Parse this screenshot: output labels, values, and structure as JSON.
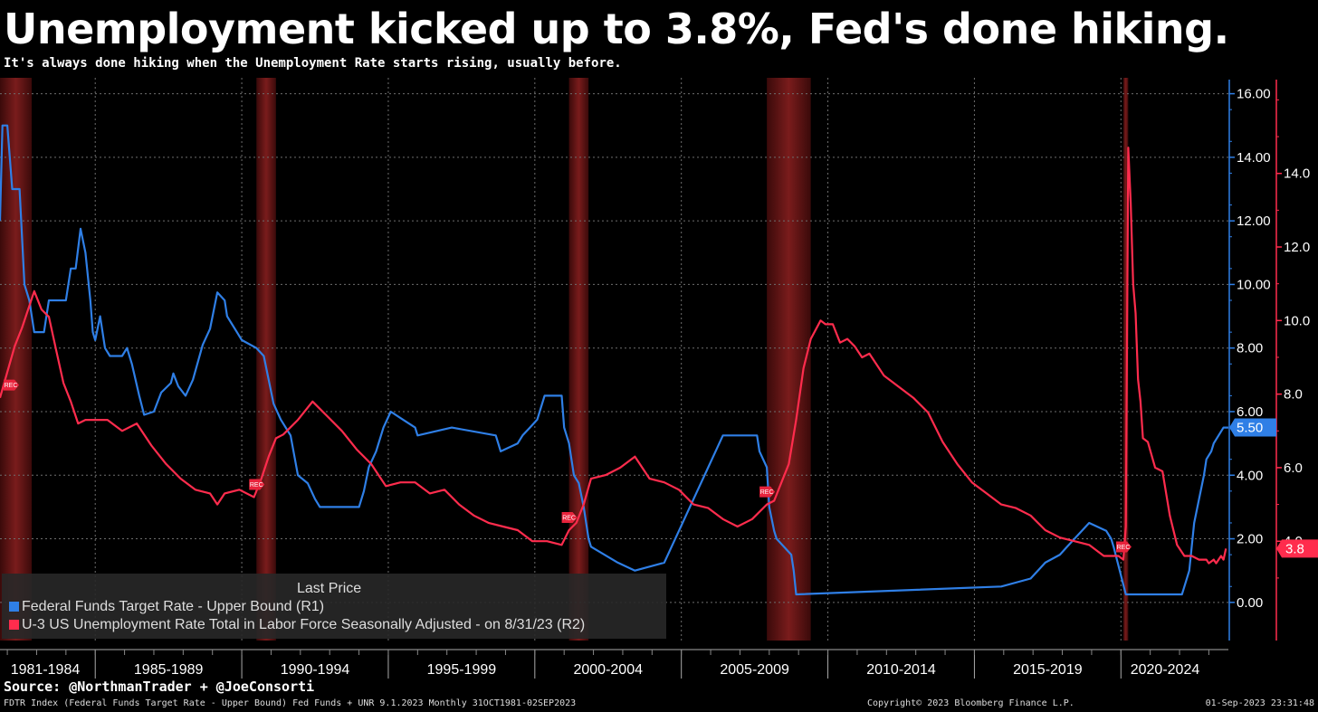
{
  "title": "Unemployment kicked up to 3.8%, Fed's done hiking.",
  "subtitle": "It's always done hiking when the Unemployment Rate starts rising, usually before.",
  "source": "Source: @NorthmanTrader + @JoeConsorti",
  "footer": {
    "left": "FDTR Index (Federal Funds Target Rate - Upper Bound) Fed Funds + UNR 9.1.2023  Monthly 31OCT1981-02SEP2023",
    "center": "Copyright© 2023 Bloomberg Finance L.P.",
    "right": "01-Sep-2023 23:31:48"
  },
  "legend": {
    "header": "Last Price",
    "items": [
      "Federal Funds Target Rate - Upper Bound  (R1)",
      "U-3 US Unemployment Rate Total in Labor Force Seasonally Adjusted -  on 8/31/23  (R2)"
    ]
  },
  "colors": {
    "fed": "#2f7fe6",
    "unemployment": "#ff2c4d",
    "recession": "#7a1c1c",
    "background": "#000000",
    "grid": "#6e6e6e"
  },
  "chart_data": {
    "type": "line",
    "x_range": [
      "1981-10",
      "2023-09"
    ],
    "x_tick_labels": [
      "1981-1984",
      "1985-1989",
      "1990-1994",
      "1995-1999",
      "2000-2004",
      "2005-2009",
      "2010-2014",
      "2015-2019",
      "2020-2024"
    ],
    "y1_axis": {
      "ticks": [
        "0.00",
        "2.00",
        "4.00",
        "6.00",
        "8.00",
        "10.00",
        "12.00",
        "14.00",
        "16.00"
      ],
      "ylim": [
        -1.2,
        16.5
      ]
    },
    "y2_axis": {
      "ticks": [
        "4.0",
        "6.0",
        "8.0",
        "10.0",
        "12.0",
        "14.0"
      ],
      "ylim": [
        1.3,
        16.6
      ]
    },
    "last_values": {
      "fed": "5.50",
      "unemployment": "3.8"
    },
    "recession_label": "REC",
    "recessions": [
      [
        "1981-07",
        "1982-11"
      ],
      [
        "1990-07",
        "1991-03"
      ],
      [
        "2001-03",
        "2001-11"
      ],
      [
        "2007-12",
        "2009-06"
      ],
      [
        "2020-02",
        "2020-04"
      ]
    ],
    "series": [
      {
        "name": "Federal Funds Target Rate - Upper Bound  (R1)",
        "axis": "y1",
        "points": [
          [
            "1981-10",
            12.0
          ],
          [
            "1981-11",
            15.0
          ],
          [
            "1982-01",
            15.0
          ],
          [
            "1982-03",
            13.0
          ],
          [
            "1982-06",
            13.0
          ],
          [
            "1982-08",
            10.0
          ],
          [
            "1982-10",
            9.5
          ],
          [
            "1982-11",
            9.0
          ],
          [
            "1982-12",
            8.5
          ],
          [
            "1983-04",
            8.5
          ],
          [
            "1983-06",
            9.5
          ],
          [
            "1983-09",
            9.5
          ],
          [
            "1984-01",
            9.5
          ],
          [
            "1984-03",
            10.5
          ],
          [
            "1984-05",
            10.5
          ],
          [
            "1984-07",
            11.75
          ],
          [
            "1984-09",
            11.0
          ],
          [
            "1984-11",
            9.5
          ],
          [
            "1984-12",
            8.5
          ],
          [
            "1985-01",
            8.25
          ],
          [
            "1985-03",
            9.0
          ],
          [
            "1985-05",
            8.0
          ],
          [
            "1985-07",
            7.75
          ],
          [
            "1985-12",
            7.75
          ],
          [
            "1986-02",
            8.0
          ],
          [
            "1986-04",
            7.5
          ],
          [
            "1986-07",
            6.5
          ],
          [
            "1986-09",
            5.9
          ],
          [
            "1987-01",
            6.0
          ],
          [
            "1987-04",
            6.6
          ],
          [
            "1987-08",
            6.9
          ],
          [
            "1987-09",
            7.2
          ],
          [
            "1987-11",
            6.8
          ],
          [
            "1988-02",
            6.5
          ],
          [
            "1988-05",
            7.0
          ],
          [
            "1988-09",
            8.1
          ],
          [
            "1988-12",
            8.6
          ],
          [
            "1989-03",
            9.75
          ],
          [
            "1989-06",
            9.5
          ],
          [
            "1989-07",
            9.0
          ],
          [
            "1989-11",
            8.5
          ],
          [
            "1990-01",
            8.25
          ],
          [
            "1990-07",
            8.0
          ],
          [
            "1990-10",
            7.75
          ],
          [
            "1990-12",
            7.0
          ],
          [
            "1991-02",
            6.25
          ],
          [
            "1991-05",
            5.75
          ],
          [
            "1991-09",
            5.25
          ],
          [
            "1991-12",
            4.0
          ],
          [
            "1992-04",
            3.75
          ],
          [
            "1992-07",
            3.25
          ],
          [
            "1992-09",
            3.0
          ],
          [
            "1994-01",
            3.0
          ],
          [
            "1994-03",
            3.5
          ],
          [
            "1994-05",
            4.25
          ],
          [
            "1994-08",
            4.75
          ],
          [
            "1994-11",
            5.5
          ],
          [
            "1995-02",
            6.0
          ],
          [
            "1995-07",
            5.75
          ],
          [
            "1995-12",
            5.5
          ],
          [
            "1996-01",
            5.25
          ],
          [
            "1997-03",
            5.5
          ],
          [
            "1998-09",
            5.25
          ],
          [
            "1998-10",
            5.0
          ],
          [
            "1998-11",
            4.75
          ],
          [
            "1999-06",
            5.0
          ],
          [
            "1999-08",
            5.25
          ],
          [
            "1999-11",
            5.5
          ],
          [
            "2000-02",
            5.75
          ],
          [
            "2000-03",
            6.0
          ],
          [
            "2000-05",
            6.5
          ],
          [
            "2000-12",
            6.5
          ],
          [
            "2001-01",
            5.5
          ],
          [
            "2001-03",
            5.0
          ],
          [
            "2001-05",
            4.0
          ],
          [
            "2001-07",
            3.75
          ],
          [
            "2001-09",
            3.0
          ],
          [
            "2001-11",
            2.0
          ],
          [
            "2001-12",
            1.75
          ],
          [
            "2002-11",
            1.25
          ],
          [
            "2003-06",
            1.0
          ],
          [
            "2004-06",
            1.25
          ],
          [
            "2004-09",
            1.75
          ],
          [
            "2004-12",
            2.25
          ],
          [
            "2005-03",
            2.75
          ],
          [
            "2005-06",
            3.25
          ],
          [
            "2005-09",
            3.75
          ],
          [
            "2005-12",
            4.25
          ],
          [
            "2006-03",
            4.75
          ],
          [
            "2006-06",
            5.25
          ],
          [
            "2007-08",
            5.25
          ],
          [
            "2007-09",
            4.75
          ],
          [
            "2007-12",
            4.25
          ],
          [
            "2008-01",
            3.0
          ],
          [
            "2008-03",
            2.25
          ],
          [
            "2008-04",
            2.0
          ],
          [
            "2008-10",
            1.5
          ],
          [
            "2008-11",
            1.0
          ],
          [
            "2008-12",
            0.25
          ],
          [
            "2015-12",
            0.5
          ],
          [
            "2016-12",
            0.75
          ],
          [
            "2017-03",
            1.0
          ],
          [
            "2017-06",
            1.25
          ],
          [
            "2017-12",
            1.5
          ],
          [
            "2018-03",
            1.75
          ],
          [
            "2018-06",
            2.0
          ],
          [
            "2018-09",
            2.25
          ],
          [
            "2018-12",
            2.5
          ],
          [
            "2019-07",
            2.25
          ],
          [
            "2019-09",
            2.0
          ],
          [
            "2019-10",
            1.75
          ],
          [
            "2020-03",
            0.25
          ],
          [
            "2022-02",
            0.25
          ],
          [
            "2022-03",
            0.5
          ],
          [
            "2022-05",
            1.0
          ],
          [
            "2022-06",
            1.75
          ],
          [
            "2022-07",
            2.5
          ],
          [
            "2022-09",
            3.25
          ],
          [
            "2022-11",
            4.0
          ],
          [
            "2022-12",
            4.5
          ],
          [
            "2023-02",
            4.75
          ],
          [
            "2023-03",
            5.0
          ],
          [
            "2023-05",
            5.25
          ],
          [
            "2023-07",
            5.5
          ],
          [
            "2023-09",
            5.5
          ]
        ]
      },
      {
        "name": "U-3 US Unemployment Rate Total in Labor Force Seasonally Adjusted -  on 8/31/23  (R2)",
        "axis": "y2",
        "points": [
          [
            "1981-10",
            7.9
          ],
          [
            "1982-01",
            8.6
          ],
          [
            "1982-04",
            9.3
          ],
          [
            "1982-07",
            9.8
          ],
          [
            "1982-10",
            10.4
          ],
          [
            "1982-12",
            10.8
          ],
          [
            "1983-03",
            10.3
          ],
          [
            "1983-06",
            10.1
          ],
          [
            "1983-09",
            9.2
          ],
          [
            "1983-12",
            8.3
          ],
          [
            "1984-03",
            7.8
          ],
          [
            "1984-06",
            7.2
          ],
          [
            "1984-09",
            7.3
          ],
          [
            "1984-12",
            7.3
          ],
          [
            "1985-06",
            7.3
          ],
          [
            "1985-12",
            7.0
          ],
          [
            "1986-06",
            7.2
          ],
          [
            "1986-12",
            6.6
          ],
          [
            "1987-06",
            6.1
          ],
          [
            "1987-12",
            5.7
          ],
          [
            "1988-06",
            5.4
          ],
          [
            "1988-12",
            5.3
          ],
          [
            "1989-03",
            5.0
          ],
          [
            "1989-06",
            5.3
          ],
          [
            "1989-12",
            5.4
          ],
          [
            "1990-06",
            5.2
          ],
          [
            "1990-09",
            5.7
          ],
          [
            "1990-12",
            6.3
          ],
          [
            "1991-03",
            6.8
          ],
          [
            "1991-06",
            6.9
          ],
          [
            "1991-12",
            7.3
          ],
          [
            "1992-06",
            7.8
          ],
          [
            "1992-12",
            7.4
          ],
          [
            "1993-06",
            7.0
          ],
          [
            "1993-12",
            6.5
          ],
          [
            "1994-06",
            6.1
          ],
          [
            "1994-12",
            5.5
          ],
          [
            "1995-06",
            5.6
          ],
          [
            "1995-12",
            5.6
          ],
          [
            "1996-06",
            5.3
          ],
          [
            "1996-12",
            5.4
          ],
          [
            "1997-06",
            5.0
          ],
          [
            "1997-12",
            4.7
          ],
          [
            "1998-06",
            4.5
          ],
          [
            "1998-12",
            4.4
          ],
          [
            "1999-06",
            4.3
          ],
          [
            "1999-12",
            4.0
          ],
          [
            "2000-06",
            4.0
          ],
          [
            "2000-12",
            3.9
          ],
          [
            "2001-03",
            4.3
          ],
          [
            "2001-06",
            4.5
          ],
          [
            "2001-09",
            5.0
          ],
          [
            "2001-12",
            5.7
          ],
          [
            "2002-06",
            5.8
          ],
          [
            "2002-12",
            6.0
          ],
          [
            "2003-06",
            6.3
          ],
          [
            "2003-12",
            5.7
          ],
          [
            "2004-06",
            5.6
          ],
          [
            "2004-12",
            5.4
          ],
          [
            "2005-06",
            5.0
          ],
          [
            "2005-12",
            4.9
          ],
          [
            "2006-06",
            4.6
          ],
          [
            "2006-12",
            4.4
          ],
          [
            "2007-06",
            4.6
          ],
          [
            "2007-12",
            5.0
          ],
          [
            "2008-03",
            5.1
          ],
          [
            "2008-06",
            5.6
          ],
          [
            "2008-09",
            6.1
          ],
          [
            "2008-12",
            7.3
          ],
          [
            "2009-03",
            8.7
          ],
          [
            "2009-06",
            9.5
          ],
          [
            "2009-10",
            10.0
          ],
          [
            "2009-12",
            9.9
          ],
          [
            "2010-03",
            9.9
          ],
          [
            "2010-06",
            9.4
          ],
          [
            "2010-09",
            9.5
          ],
          [
            "2010-12",
            9.3
          ],
          [
            "2011-03",
            9.0
          ],
          [
            "2011-06",
            9.1
          ],
          [
            "2011-12",
            8.5
          ],
          [
            "2012-06",
            8.2
          ],
          [
            "2012-12",
            7.9
          ],
          [
            "2013-06",
            7.5
          ],
          [
            "2013-12",
            6.7
          ],
          [
            "2014-06",
            6.1
          ],
          [
            "2014-12",
            5.6
          ],
          [
            "2015-06",
            5.3
          ],
          [
            "2015-12",
            5.0
          ],
          [
            "2016-06",
            4.9
          ],
          [
            "2016-12",
            4.7
          ],
          [
            "2017-06",
            4.3
          ],
          [
            "2017-12",
            4.1
          ],
          [
            "2018-06",
            4.0
          ],
          [
            "2018-12",
            3.9
          ],
          [
            "2019-06",
            3.6
          ],
          [
            "2019-12",
            3.6
          ],
          [
            "2020-02",
            3.5
          ],
          [
            "2020-03",
            4.4
          ],
          [
            "2020-04",
            14.7
          ],
          [
            "2020-05",
            13.2
          ],
          [
            "2020-06",
            11.0
          ],
          [
            "2020-07",
            10.2
          ],
          [
            "2020-08",
            8.4
          ],
          [
            "2020-09",
            7.8
          ],
          [
            "2020-10",
            6.8
          ],
          [
            "2020-12",
            6.7
          ],
          [
            "2021-03",
            6.0
          ],
          [
            "2021-06",
            5.9
          ],
          [
            "2021-09",
            4.7
          ],
          [
            "2021-12",
            3.9
          ],
          [
            "2022-03",
            3.6
          ],
          [
            "2022-06",
            3.6
          ],
          [
            "2022-09",
            3.5
          ],
          [
            "2022-12",
            3.5
          ],
          [
            "2023-01",
            3.4
          ],
          [
            "2023-03",
            3.5
          ],
          [
            "2023-04",
            3.4
          ],
          [
            "2023-06",
            3.6
          ],
          [
            "2023-07",
            3.5
          ],
          [
            "2023-08",
            3.8
          ]
        ]
      }
    ]
  }
}
